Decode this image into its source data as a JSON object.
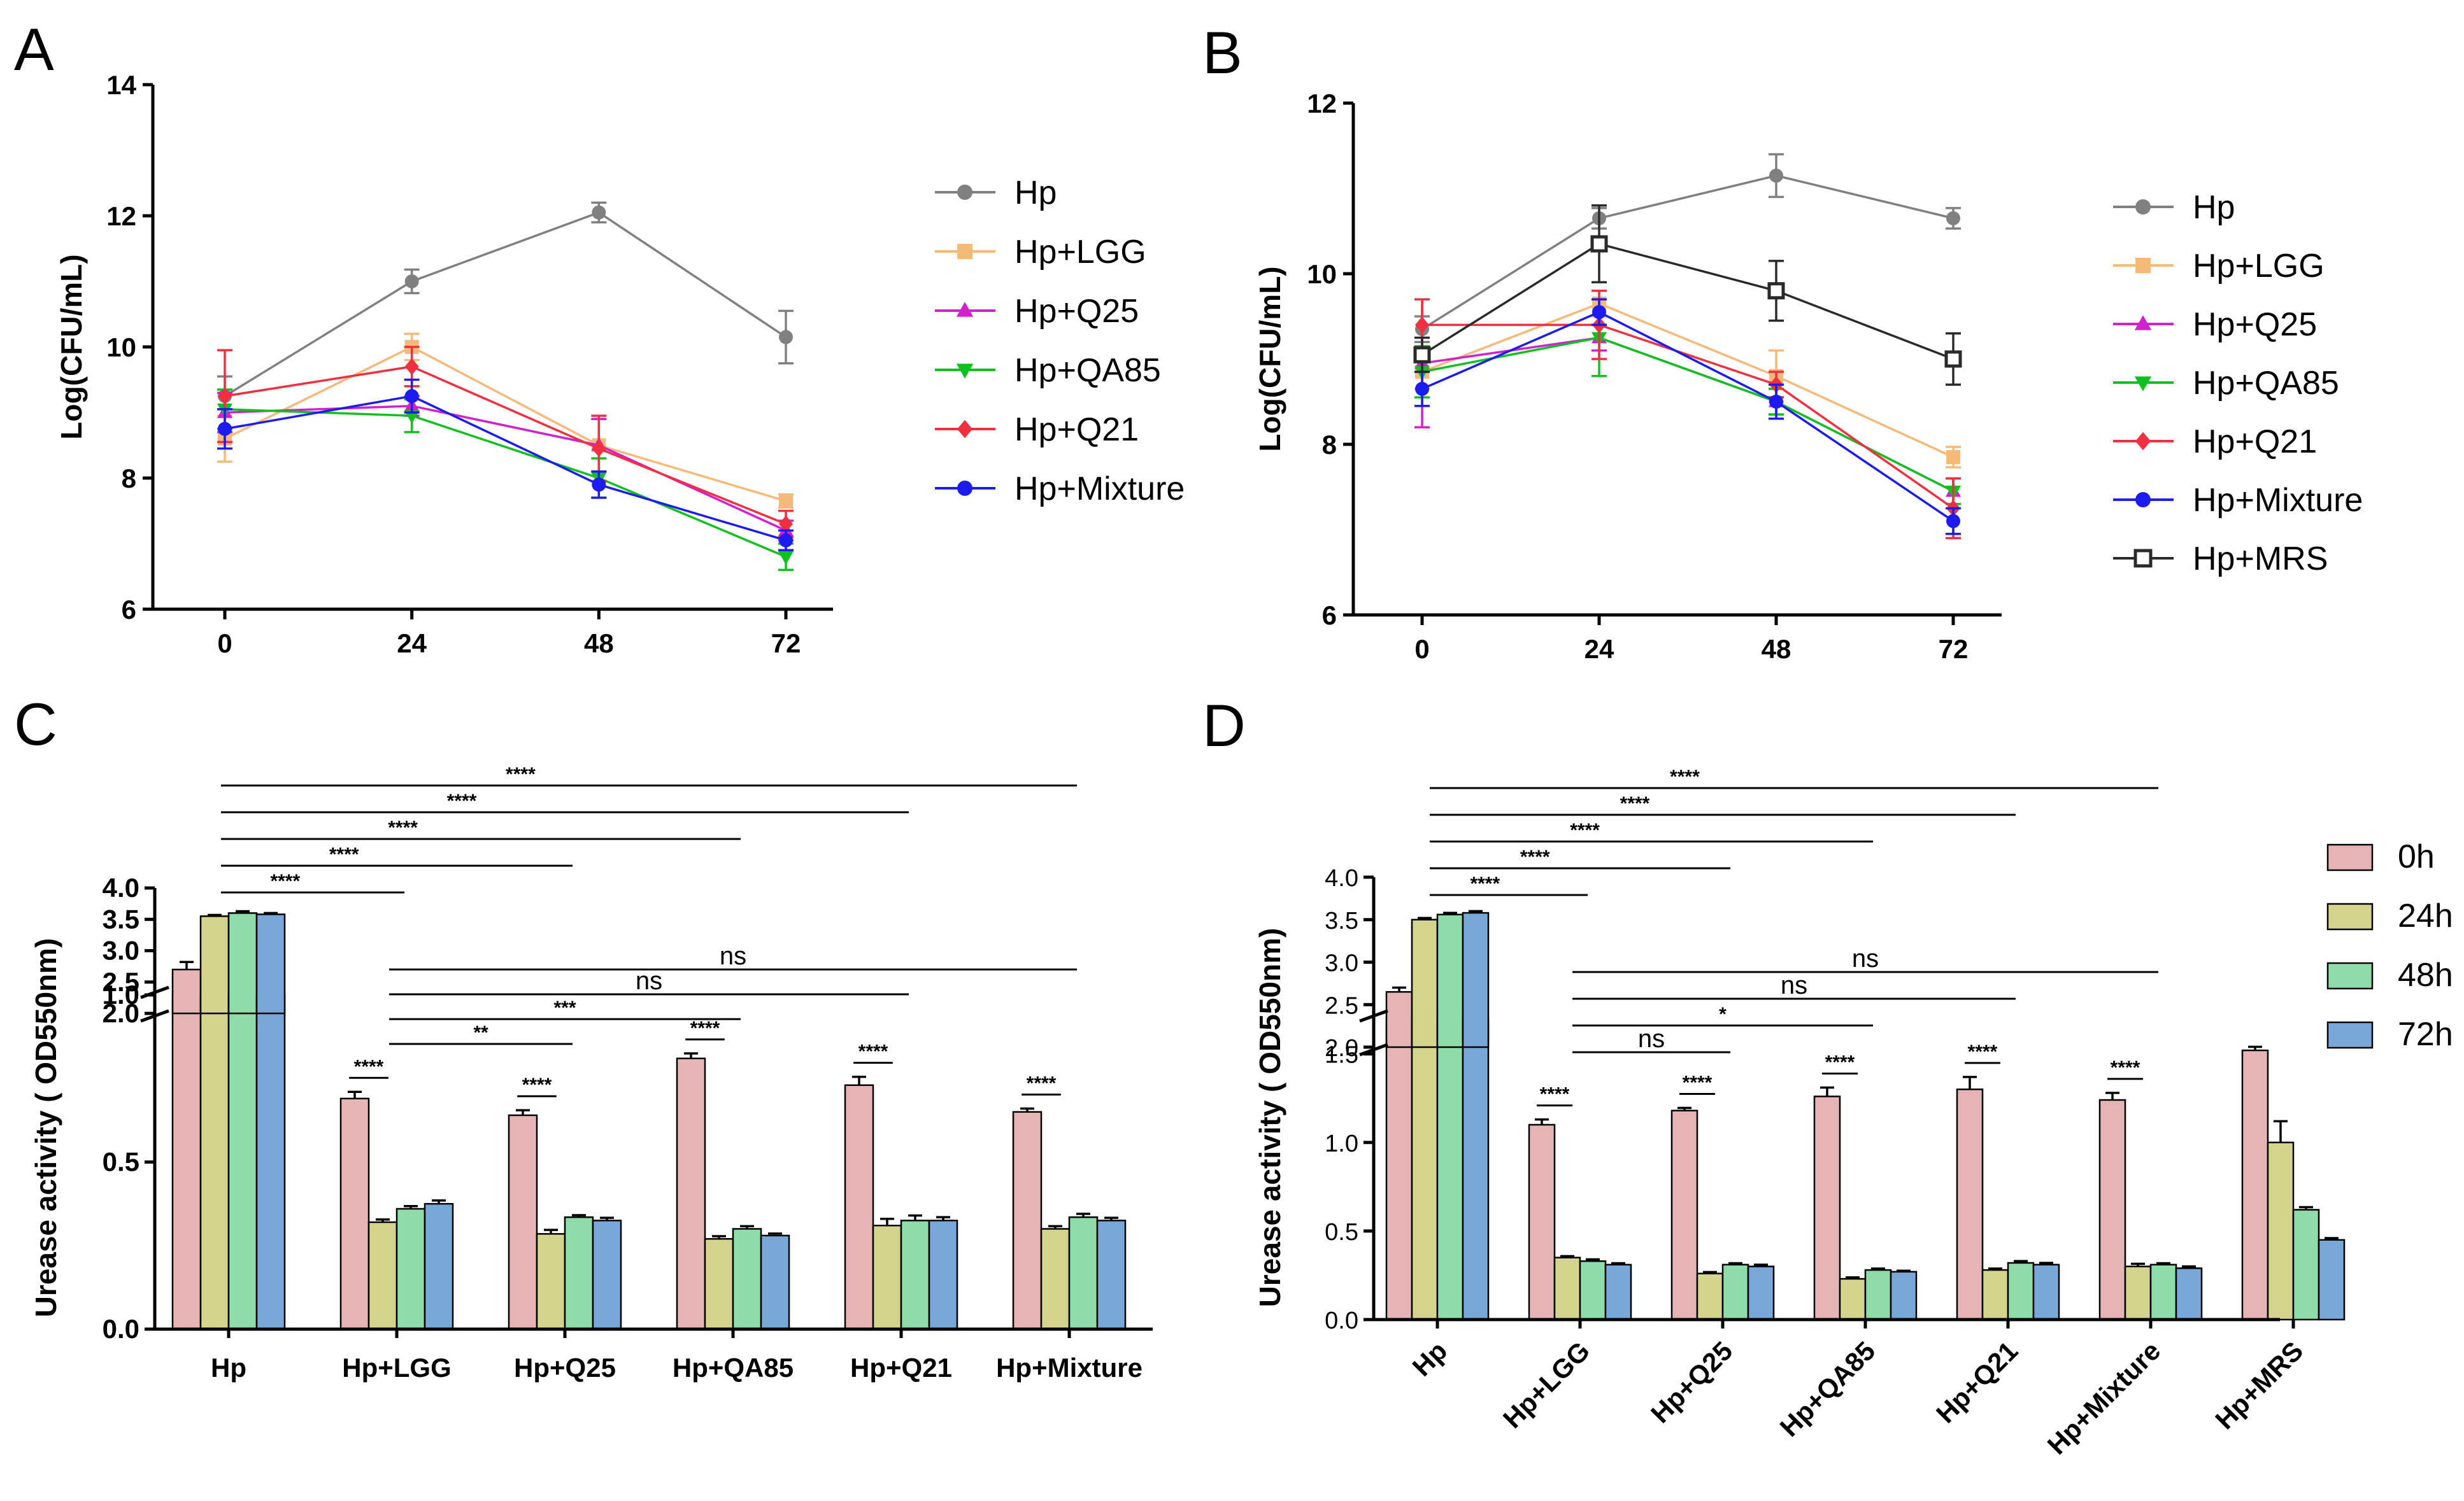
{
  "panels": {
    "A": {
      "letter": "A",
      "chart_data": {
        "type": "line",
        "xlabel": "",
        "ylabel": "Log(CFU/mL)",
        "x": [
          0,
          24,
          48,
          72
        ],
        "x_tick_labels": [
          "0",
          "24",
          "48",
          "72"
        ],
        "ylim": [
          6,
          14
        ],
        "y_ticks": [
          6,
          8,
          10,
          12,
          14
        ],
        "legend_position": "right",
        "series": [
          {
            "name": "Hp",
            "color": "#808080",
            "marker": "circle",
            "values": [
              9.25,
              11.0,
              12.05,
              10.15
            ],
            "errors": [
              0.3,
              0.18,
              0.15,
              0.4
            ]
          },
          {
            "name": "Hp+LGG",
            "color": "#f5b97a",
            "marker": "square",
            "values": [
              8.6,
              10.0,
              8.5,
              7.65
            ],
            "errors": [
              0.35,
              0.2,
              0.4,
              0.1
            ]
          },
          {
            "name": "Hp+Q25",
            "color": "#d020d0",
            "marker": "triangle-up",
            "values": [
              9.0,
              9.1,
              8.5,
              7.2
            ],
            "errors": [
              0.3,
              0.15,
              0.4,
              0.15
            ]
          },
          {
            "name": "Hp+QA85",
            "color": "#10c020",
            "marker": "triangle-down",
            "values": [
              9.05,
              8.95,
              8.0,
              6.8
            ],
            "errors": [
              0.3,
              0.25,
              0.3,
              0.2
            ]
          },
          {
            "name": "Hp+Q21",
            "color": "#f03040",
            "marker": "diamond",
            "values": [
              9.25,
              9.7,
              8.45,
              7.3
            ],
            "errors": [
              0.7,
              0.3,
              0.5,
              0.2
            ]
          },
          {
            "name": "Hp+Mixture",
            "color": "#1c1cf0",
            "marker": "circle",
            "values": [
              8.75,
              9.25,
              7.9,
              7.05
            ],
            "errors": [
              0.3,
              0.25,
              0.2,
              0.15
            ]
          }
        ]
      }
    },
    "B": {
      "letter": "B",
      "chart_data": {
        "type": "line",
        "xlabel": "",
        "ylabel": "Log(CFU/mL)",
        "x": [
          0,
          24,
          48,
          72
        ],
        "x_tick_labels": [
          "0",
          "24",
          "48",
          "72"
        ],
        "ylim": [
          6,
          12
        ],
        "y_ticks": [
          6,
          8,
          10,
          12
        ],
        "legend_position": "right",
        "series": [
          {
            "name": "Hp",
            "color": "#808080",
            "marker": "circle",
            "values": [
              9.35,
              10.65,
              11.15,
              10.65
            ],
            "errors": [
              0.15,
              0.12,
              0.25,
              0.12
            ]
          },
          {
            "name": "Hp+LGG",
            "color": "#f5b97a",
            "marker": "square",
            "values": [
              8.85,
              9.65,
              8.8,
              7.85
            ],
            "errors": [
              0.2,
              0.15,
              0.3,
              0.12
            ]
          },
          {
            "name": "Hp+Q25",
            "color": "#d020d0",
            "marker": "triangle-up",
            "values": [
              8.95,
              9.25,
              8.5,
              7.45
            ],
            "errors": [
              0.75,
              0.15,
              0.15,
              0.15
            ]
          },
          {
            "name": "Hp+QA85",
            "color": "#10c020",
            "marker": "triangle-down",
            "values": [
              8.85,
              9.25,
              8.5,
              7.45
            ],
            "errors": [
              0.3,
              0.45,
              0.15,
              0.15
            ]
          },
          {
            "name": "Hp+Q21",
            "color": "#f03040",
            "marker": "diamond",
            "values": [
              9.4,
              9.4,
              8.7,
              7.25
            ],
            "errors": [
              0.3,
              0.4,
              0.15,
              0.35
            ]
          },
          {
            "name": "Hp+Mixture",
            "color": "#1c1cf0",
            "marker": "circle",
            "values": [
              8.65,
              9.55,
              8.5,
              7.1
            ],
            "errors": [
              0.2,
              0.15,
              0.2,
              0.15
            ]
          },
          {
            "name": "Hp+MRS",
            "color": "#2a2a2a",
            "marker": "open-square",
            "values": [
              9.05,
              10.35,
              9.8,
              9.0
            ],
            "errors": [
              0.2,
              0.45,
              0.35,
              0.3
            ]
          }
        ]
      }
    },
    "C": {
      "letter": "C",
      "chart_data": {
        "type": "bar",
        "ylabel": "Urease activity ( OD550nm)",
        "categories": [
          "Hp",
          "Hp+LGG",
          "Hp+Q25",
          "Hp+QA85",
          "Hp+Q21",
          "Hp+Mixture"
        ],
        "y_axis_break": {
          "lower_range": [
            0.0,
            1.0
          ],
          "upper_range": [
            2.0,
            4.0
          ]
        },
        "lower_ticks": [
          "0.0",
          "0.5",
          "1.0"
        ],
        "upper_ticks": [
          "2.0",
          "2.5",
          "3.0",
          "3.5",
          "4.0"
        ],
        "series": [
          {
            "name": "0h",
            "color": "#e6b4b4",
            "values": [
              2.7,
              0.69,
              0.64,
              0.81,
              0.73,
              0.65
            ],
            "errors": [
              0.12,
              0.02,
              0.015,
              0.015,
              0.025,
              0.01
            ]
          },
          {
            "name": "24h",
            "color": "#d4d48c",
            "values": [
              3.55,
              0.32,
              0.285,
              0.27,
              0.31,
              0.3
            ],
            "errors": [
              0.02,
              0.008,
              0.012,
              0.008,
              0.02,
              0.008
            ]
          },
          {
            "name": "48h",
            "color": "#8edca8",
            "values": [
              3.6,
              0.36,
              0.335,
              0.3,
              0.325,
              0.335
            ],
            "errors": [
              0.03,
              0.008,
              0.006,
              0.008,
              0.015,
              0.01
            ]
          },
          {
            "name": "72h",
            "color": "#78a8d8",
            "values": [
              3.58,
              0.375,
              0.325,
              0.28,
              0.325,
              0.325
            ],
            "errors": [
              0.02,
              0.01,
              0.008,
              0.006,
              0.01,
              0.008
            ]
          }
        ],
        "comparisons_top": [
          {
            "from": "Hp",
            "to": "Hp+LGG",
            "label": "****"
          },
          {
            "from": "Hp",
            "to": "Hp+Q25",
            "label": "****"
          },
          {
            "from": "Hp",
            "to": "Hp+QA85",
            "label": "****"
          },
          {
            "from": "Hp",
            "to": "Hp+Q21",
            "label": "****"
          },
          {
            "from": "Hp",
            "to": "Hp+Mixture",
            "label": "****"
          }
        ],
        "comparisons_lower": [
          {
            "from": "Hp+LGG",
            "to": "Hp+Q25",
            "label": "**"
          },
          {
            "from": "Hp+LGG",
            "to": "Hp+QA85",
            "label": "***"
          },
          {
            "from": "Hp+LGG",
            "to": "Hp+Q21",
            "label": "ns"
          },
          {
            "from": "Hp+LGG",
            "to": "Hp+Mixture",
            "label": "ns"
          }
        ],
        "within_group": [
          {
            "group": "Hp+LGG",
            "label": "****"
          },
          {
            "group": "Hp+Q25",
            "label": "****"
          },
          {
            "group": "Hp+QA85",
            "label": "****"
          },
          {
            "group": "Hp+Q21",
            "label": "****"
          },
          {
            "group": "Hp+Mixture",
            "label": "****"
          }
        ]
      }
    },
    "D": {
      "letter": "D",
      "chart_data": {
        "type": "bar",
        "ylabel": "Urease activity ( OD550nm)",
        "categories": [
          "Hp",
          "Hp+LGG",
          "Hp+Q25",
          "Hp+QA85",
          "Hp+Q21",
          "Hp+Mixture",
          "Hp+MRS"
        ],
        "y_axis_break": {
          "lower_range": [
            0.0,
            1.7
          ],
          "upper_range": [
            2.0,
            4.0
          ]
        },
        "lower_ticks": [
          "0.0",
          "0.5",
          "1.0",
          "1.5"
        ],
        "upper_ticks": [
          "2.0",
          "2.5",
          "3.0",
          "3.5",
          "4.0"
        ],
        "legend_position": "right",
        "series": [
          {
            "name": "0h",
            "color": "#e6b4b4",
            "values": [
              2.65,
              1.1,
              1.18,
              1.26,
              1.3,
              1.24,
              1.52
            ],
            "errors": [
              0.05,
              0.03,
              0.015,
              0.05,
              0.07,
              0.04,
              0.02
            ]
          },
          {
            "name": "24h",
            "color": "#d4d48c",
            "values": [
              3.5,
              0.35,
              0.26,
              0.23,
              0.28,
              0.3,
              1.0
            ],
            "errors": [
              0.02,
              0.008,
              0.008,
              0.008,
              0.008,
              0.015,
              0.12
            ]
          },
          {
            "name": "48h",
            "color": "#8edca8",
            "values": [
              3.56,
              0.33,
              0.31,
              0.28,
              0.32,
              0.31,
              0.62
            ],
            "errors": [
              0.02,
              0.01,
              0.008,
              0.008,
              0.01,
              0.008,
              0.015
            ]
          },
          {
            "name": "72h",
            "color": "#78a8d8",
            "values": [
              3.58,
              0.31,
              0.3,
              0.27,
              0.31,
              0.29,
              0.45
            ],
            "errors": [
              0.02,
              0.008,
              0.01,
              0.006,
              0.01,
              0.01,
              0.01
            ]
          }
        ],
        "comparisons_top": [
          {
            "from": "Hp",
            "to": "Hp+LGG",
            "label": "****"
          },
          {
            "from": "Hp",
            "to": "Hp+Q25",
            "label": "****"
          },
          {
            "from": "Hp",
            "to": "Hp+QA85",
            "label": "****"
          },
          {
            "from": "Hp",
            "to": "Hp+Q21",
            "label": "****"
          },
          {
            "from": "Hp",
            "to": "Hp+Mixture",
            "label": "****"
          }
        ],
        "comparisons_lower": [
          {
            "from": "Hp+LGG",
            "to": "Hp+Q25",
            "label": "ns"
          },
          {
            "from": "Hp+LGG",
            "to": "Hp+QA85",
            "label": "*"
          },
          {
            "from": "Hp+LGG",
            "to": "Hp+Q21",
            "label": "ns"
          },
          {
            "from": "Hp+LGG",
            "to": "Hp+Mixture",
            "label": "ns"
          }
        ],
        "within_group": [
          {
            "group": "Hp+LGG",
            "label": "****"
          },
          {
            "group": "Hp+Q25",
            "label": "****"
          },
          {
            "group": "Hp+QA85",
            "label": "****"
          },
          {
            "group": "Hp+Q21",
            "label": "****"
          },
          {
            "group": "Hp+Mixture",
            "label": "****"
          }
        ]
      }
    }
  }
}
